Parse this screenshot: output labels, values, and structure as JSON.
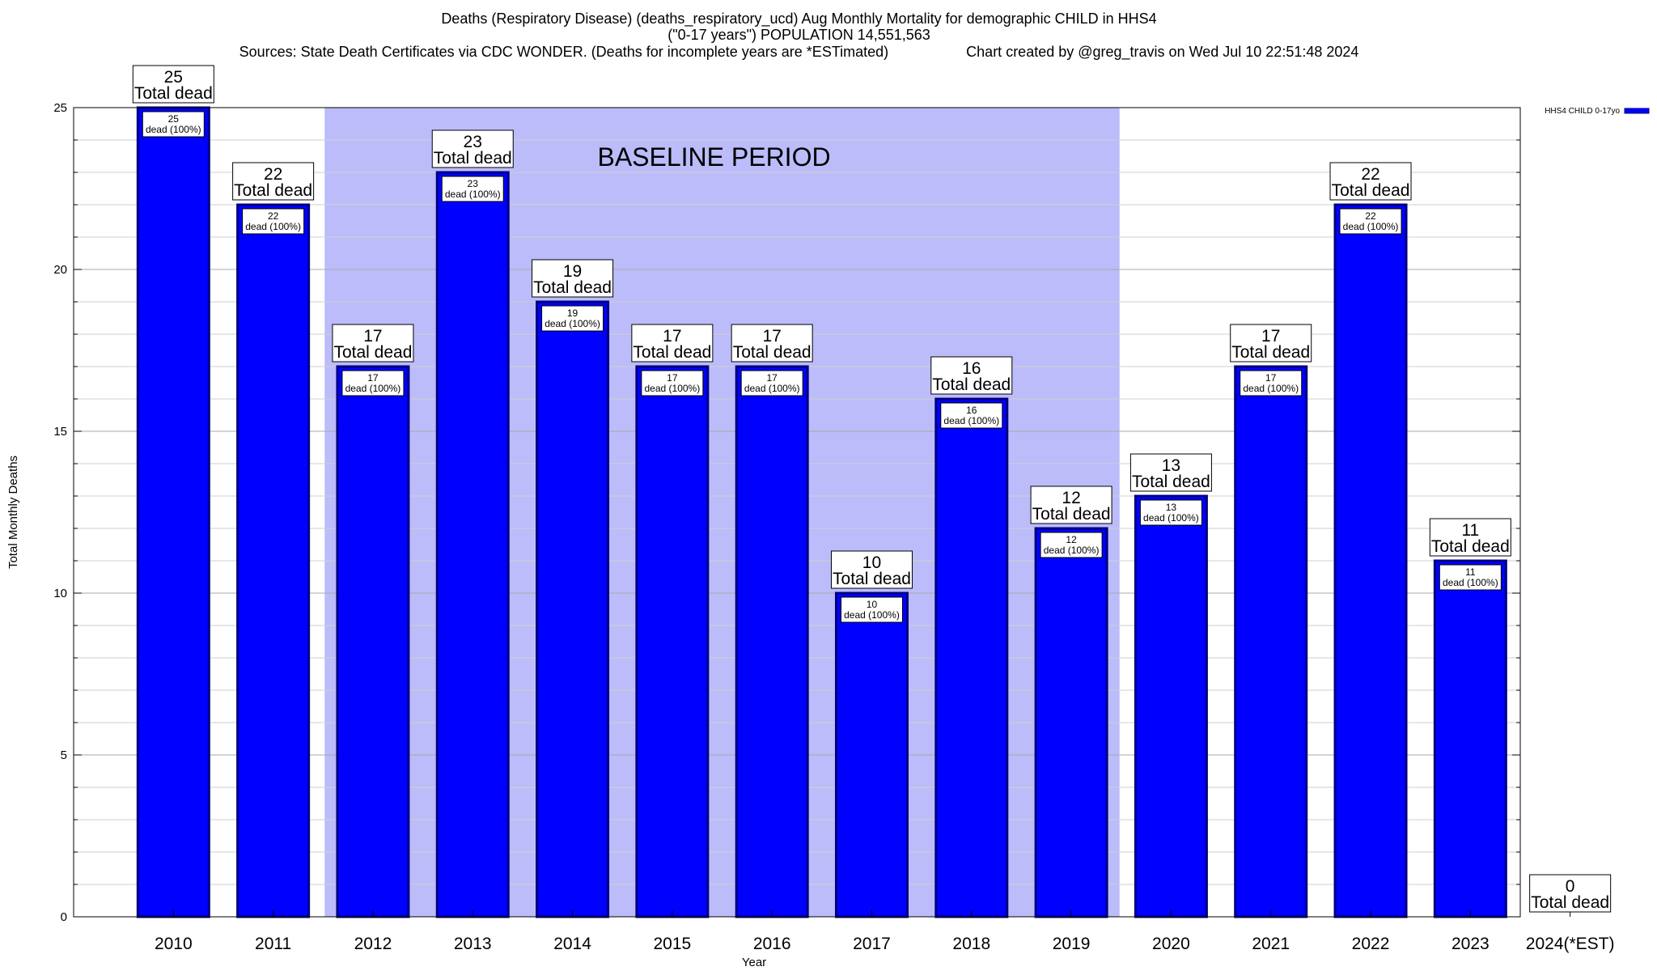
{
  "chart_data": {
    "type": "bar",
    "title": "Deaths (Respiratory Disease) (deaths_respiratory_ucd) Aug Monthly Mortality for demographic CHILD in HHS4",
    "subtitle": "(\"0-17 years\") POPULATION 14,551,563",
    "sources": "Sources: State Death Certificates via CDC WONDER. (Deaths for incomplete years are *ESTimated)",
    "credit": "Chart created by @greg_travis on Wed Jul 10 22:51:48 2024",
    "xlabel": "Year",
    "ylabel": "Total Monthly Deaths",
    "ylim": [
      0,
      25
    ],
    "yticks": [
      "0",
      "5",
      "10",
      "15",
      "20",
      "25"
    ],
    "grid": true,
    "legend_position": "top-right",
    "categories": [
      "2010",
      "2011",
      "2012",
      "2013",
      "2014",
      "2015",
      "2016",
      "2017",
      "2018",
      "2019",
      "2020",
      "2021",
      "2022",
      "2023",
      "2024(*EST)"
    ],
    "series": [
      {
        "name": "HHS4 CHILD 0-17yo",
        "color": "#0000ff",
        "values": [
          25,
          22,
          17,
          23,
          19,
          17,
          17,
          10,
          16,
          12,
          13,
          17,
          22,
          11,
          0
        ]
      }
    ],
    "top_labels": [
      "25",
      "22",
      "17",
      "23",
      "19",
      "17",
      "17",
      "10",
      "16",
      "12",
      "13",
      "17",
      "22",
      "11",
      "0"
    ],
    "top_label_caption": "Total dead",
    "inner_labels": [
      "25",
      "22",
      "17",
      "23",
      "19",
      "17",
      "17",
      "10",
      "16",
      "12",
      "13",
      "17",
      "22",
      "11",
      ""
    ],
    "inner_label_caption": "dead (100%)",
    "baseline": {
      "label": "BASELINE PERIOD",
      "from": "2012",
      "to": "2019",
      "color": "#bcbcfa"
    }
  }
}
